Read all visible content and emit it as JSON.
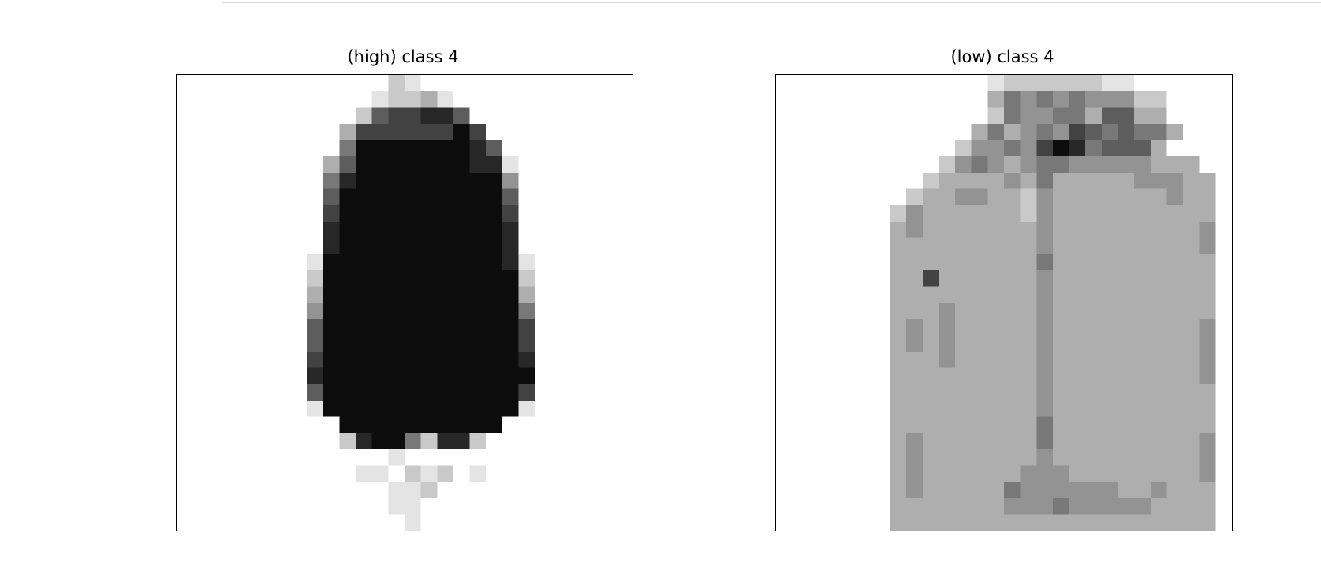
{
  "panels": [
    {
      "title": "(high) class 4",
      "image": "grayscale pixel image of a dark long coat / jacket on white background",
      "grid": [
        "0000000000000210000000000000",
        "0000000000001223100000000000",
        "0000000000026778860000000000",
        "0000000000377777797000000000",
        "0000000000599999998600000000",
        "0000000003699999998810000000",
        "0000000005899999999940000000",
        "0000000006999999999960000000",
        "0000000007999999999970000000",
        "0000000008999999999980000000",
        "0000000008999999999980000000",
        "0000000019999999999981000000",
        "0000000029999999999992000000",
        "0000000039999999999993000000",
        "0000000049999999999995000000",
        "0000000069999999999997000000",
        "0000000069999999999997000000",
        "0000000079999999999998000000",
        "0000000089999999999999000000",
        "0000000069999999999997000000",
        "0000000019999999999991000000",
        "0000000000999999999900000000",
        "0000000000289952882000000000",
        "0000000000000100000000000000",
        "0000000000011021201000000000",
        "0000000000000112000000000000",
        "0000000000000110000000000000",
        "0000000000000010000000000000"
      ]
    },
    {
      "title": "(low) class 4",
      "image": "grayscale pixel image of a light textured jacket with zipper on white background",
      "grid": [
        "0000000000000122222211000000",
        "0000000000000354545444220000",
        "0000000000000254455366330000",
        "0000000000003534547656553000",
        "0000000000024454798566630000",
        "0000000000245434554444433300",
        "0000000002333343533333444330",
        "0000000023344332433333334330",
        "0000000243333332433333333330",
        "0000000343333333433333333340",
        "0000000333333333433333333340",
        "0000000333333333533333333330",
        "0000000337333333433333333330",
        "0000000333333333433333333330",
        "0000000333433333433333333330",
        "0000000343433333433333333340",
        "0000000343433333433333333340",
        "0000000333433333433333333340",
        "0000000333333333433333333340",
        "0000000333333333433333333330",
        "0000000333333333433333333330",
        "0000000333333333533333333330",
        "0000000343333333533333333340",
        "0000000343333333433333333340",
        "0000000343333334443333333340",
        "0000000343333354444443343330",
        "0000000333333344454444433330",
        "0000000333333333333333333330"
      ]
    }
  ]
}
